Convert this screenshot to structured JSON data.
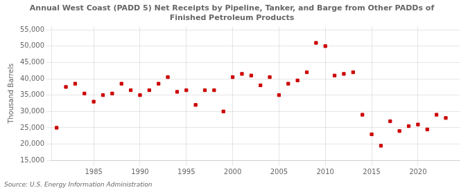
{
  "chart_data": {
    "type": "scatter",
    "title": "Annual West Coast (PADD 5) Net Receipts by Pipeline, Tanker, and Barge from Other PADDs of\nFinished Petroleum Products",
    "ylabel": "Thousand Barrels",
    "annotations": [
      "Source: U.S. Energy Information Administration"
    ],
    "x": [
      1981,
      1982,
      1983,
      1984,
      1985,
      1986,
      1987,
      1988,
      1989,
      1990,
      1991,
      1992,
      1993,
      1994,
      1995,
      1996,
      1997,
      1998,
      1999,
      2000,
      2001,
      2002,
      2003,
      2004,
      2005,
      2006,
      2007,
      2008,
      2009,
      2010,
      2011,
      2012,
      2013,
      2014,
      2015,
      2016,
      2017,
      2018,
      2019,
      2020,
      2021,
      2022,
      2023
    ],
    "values": [
      25000,
      37500,
      38500,
      35500,
      33000,
      35000,
      35500,
      38500,
      36500,
      35000,
      36500,
      38500,
      40500,
      36000,
      36500,
      32000,
      36500,
      36500,
      30000,
      40500,
      41500,
      41000,
      38000,
      40500,
      35000,
      38500,
      39500,
      42000,
      51000,
      50000,
      41000,
      41500,
      42000,
      29000,
      23000,
      19500,
      27000,
      24000,
      25500,
      26000,
      24500,
      29000,
      28000
    ],
    "color": "#cc0000",
    "marker": "square",
    "grid": true,
    "xlim": [
      1980.5,
      2024.5
    ],
    "xticks": [
      1985,
      1990,
      1995,
      2000,
      2005,
      2010,
      2015,
      2020
    ],
    "ylim": [
      15000,
      56000
    ],
    "yticks": [
      {
        "value": 15000,
        "label": "15,000"
      },
      {
        "value": 20000,
        "label": "20,000"
      },
      {
        "value": 25000,
        "label": "25,000"
      },
      {
        "value": 30000,
        "label": "30,000"
      },
      {
        "value": 35000,
        "label": "35,000"
      },
      {
        "value": 40000,
        "label": "40,000"
      },
      {
        "value": 45000,
        "label": "45,000"
      },
      {
        "value": 50000,
        "label": "50,000"
      },
      {
        "value": 55000,
        "label": "55,000"
      }
    ]
  }
}
